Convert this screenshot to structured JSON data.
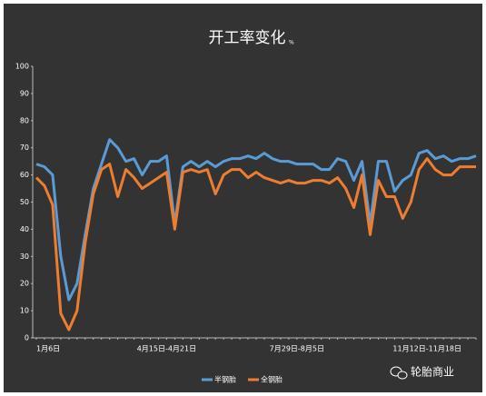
{
  "chart_data": {
    "type": "line",
    "title": "开工率变化",
    "title_unit": "%",
    "categories": [
      "1月6日",
      null,
      null,
      null,
      null,
      null,
      null,
      null,
      null,
      null,
      null,
      null,
      null,
      null,
      null,
      null,
      "4月15日-4月21日",
      null,
      null,
      null,
      null,
      null,
      null,
      null,
      null,
      null,
      null,
      null,
      null,
      null,
      null,
      null,
      "7月29日-8月5日",
      null,
      null,
      null,
      null,
      null,
      null,
      null,
      null,
      null,
      null,
      null,
      null,
      null,
      null,
      null,
      "11月12日-11月18日",
      null,
      null,
      null,
      null,
      null,
      null
    ],
    "series": [
      {
        "name": "半钢胎",
        "color": "#5b9bd5",
        "values": [
          64,
          63,
          60,
          30,
          14,
          20,
          38,
          55,
          64,
          73,
          70,
          65,
          66,
          60,
          65,
          65,
          67,
          42,
          63,
          65,
          63,
          65,
          63,
          65,
          66,
          66,
          67,
          66,
          68,
          66,
          65,
          65,
          64,
          64,
          64,
          62,
          62,
          66,
          65,
          58,
          65,
          42,
          65,
          65,
          54,
          58,
          60,
          68,
          69,
          66,
          67,
          65,
          66,
          66,
          67
        ]
      },
      {
        "name": "全钢胎",
        "color": "#ed7d31",
        "values": [
          59,
          56,
          49,
          9,
          3,
          10,
          35,
          53,
          62,
          64,
          52,
          62,
          59,
          55,
          57,
          59,
          61,
          40,
          61,
          62,
          61,
          62,
          53,
          60,
          62,
          62,
          59,
          61,
          59,
          58,
          57,
          58,
          57,
          57,
          58,
          58,
          57,
          59,
          55,
          48,
          60,
          38,
          58,
          52,
          52,
          44,
          50,
          62,
          66,
          62,
          60,
          60,
          63,
          63,
          63
        ]
      }
    ],
    "ylim": [
      0,
      100
    ],
    "yticks": [
      0,
      10,
      20,
      30,
      40,
      50,
      60,
      70,
      80,
      90,
      100
    ],
    "legend": "bottom",
    "watermark": "轮胎商业"
  }
}
